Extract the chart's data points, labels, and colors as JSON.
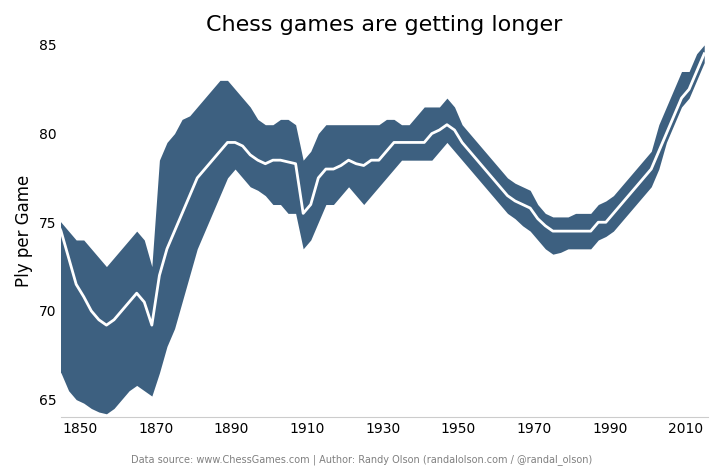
{
  "title": "Chess games are getting longer",
  "ylabel": "Ply per Game",
  "footer": "Data source: www.ChessGames.com | Author: Randy Olson (randalolson.com / @randal_olson)",
  "xlim": [
    1845,
    2016
  ],
  "ylim": [
    64,
    85
  ],
  "xticks": [
    1850,
    1870,
    1890,
    1910,
    1930,
    1950,
    1970,
    1990,
    2010
  ],
  "yticks": [
    65,
    70,
    75,
    80,
    85
  ],
  "band_color": "#3d6080",
  "line_color": "#ffffff",
  "background_color": "#ffffff",
  "years": [
    1843,
    1845,
    1847,
    1849,
    1851,
    1853,
    1855,
    1857,
    1859,
    1861,
    1863,
    1865,
    1867,
    1869,
    1871,
    1873,
    1875,
    1877,
    1879,
    1881,
    1883,
    1885,
    1887,
    1889,
    1891,
    1893,
    1895,
    1897,
    1899,
    1901,
    1903,
    1905,
    1907,
    1909,
    1911,
    1913,
    1915,
    1917,
    1919,
    1921,
    1923,
    1925,
    1927,
    1929,
    1931,
    1933,
    1935,
    1937,
    1939,
    1941,
    1943,
    1945,
    1947,
    1949,
    1951,
    1953,
    1955,
    1957,
    1959,
    1961,
    1963,
    1965,
    1967,
    1969,
    1971,
    1973,
    1975,
    1977,
    1979,
    1981,
    1983,
    1985,
    1987,
    1989,
    1991,
    1993,
    1995,
    1997,
    1999,
    2001,
    2003,
    2005,
    2007,
    2009,
    2011,
    2013,
    2015
  ],
  "median": [
    75.5,
    74.5,
    73.0,
    71.5,
    70.8,
    70.0,
    69.5,
    69.2,
    69.5,
    70.0,
    70.5,
    71.0,
    70.5,
    69.2,
    72.0,
    73.5,
    74.5,
    75.5,
    76.5,
    77.5,
    78.0,
    78.5,
    79.0,
    79.5,
    79.5,
    79.3,
    78.8,
    78.5,
    78.3,
    78.5,
    78.5,
    78.4,
    78.3,
    75.5,
    76.0,
    77.5,
    78.0,
    78.0,
    78.2,
    78.5,
    78.3,
    78.2,
    78.5,
    78.5,
    79.0,
    79.5,
    79.5,
    79.5,
    79.5,
    79.5,
    80.0,
    80.2,
    80.5,
    80.2,
    79.5,
    79.0,
    78.5,
    78.0,
    77.5,
    77.0,
    76.5,
    76.2,
    76.0,
    75.8,
    75.2,
    74.8,
    74.5,
    74.5,
    74.5,
    74.5,
    74.5,
    74.5,
    75.0,
    75.0,
    75.5,
    76.0,
    76.5,
    77.0,
    77.5,
    78.0,
    79.0,
    80.0,
    81.0,
    82.0,
    82.5,
    83.5,
    84.5
  ],
  "lower": [
    67.0,
    66.5,
    65.5,
    65.0,
    64.8,
    64.5,
    64.3,
    64.2,
    64.5,
    65.0,
    65.5,
    65.8,
    65.5,
    65.2,
    66.5,
    68.0,
    69.0,
    70.5,
    72.0,
    73.5,
    74.5,
    75.5,
    76.5,
    77.5,
    78.0,
    77.5,
    77.0,
    76.8,
    76.5,
    76.0,
    76.0,
    75.5,
    75.5,
    73.5,
    74.0,
    75.0,
    76.0,
    76.0,
    76.5,
    77.0,
    76.5,
    76.0,
    76.5,
    77.0,
    77.5,
    78.0,
    78.5,
    78.5,
    78.5,
    78.5,
    78.5,
    79.0,
    79.5,
    79.0,
    78.5,
    78.0,
    77.5,
    77.0,
    76.5,
    76.0,
    75.5,
    75.2,
    74.8,
    74.5,
    74.0,
    73.5,
    73.2,
    73.3,
    73.5,
    73.5,
    73.5,
    73.5,
    74.0,
    74.2,
    74.5,
    75.0,
    75.5,
    76.0,
    76.5,
    77.0,
    78.0,
    79.5,
    80.5,
    81.5,
    82.0,
    83.0,
    84.0
  ],
  "upper": [
    75.5,
    75.0,
    74.5,
    74.0,
    74.0,
    73.5,
    73.0,
    72.5,
    73.0,
    73.5,
    74.0,
    74.5,
    74.0,
    72.5,
    78.5,
    79.5,
    80.0,
    80.8,
    81.0,
    81.5,
    82.0,
    82.5,
    83.0,
    83.0,
    82.5,
    82.0,
    81.5,
    80.8,
    80.5,
    80.5,
    80.8,
    80.8,
    80.5,
    78.5,
    79.0,
    80.0,
    80.5,
    80.5,
    80.5,
    80.5,
    80.5,
    80.5,
    80.5,
    80.5,
    80.8,
    80.8,
    80.5,
    80.5,
    81.0,
    81.5,
    81.5,
    81.5,
    82.0,
    81.5,
    80.5,
    80.0,
    79.5,
    79.0,
    78.5,
    78.0,
    77.5,
    77.2,
    77.0,
    76.8,
    76.0,
    75.5,
    75.3,
    75.3,
    75.3,
    75.5,
    75.5,
    75.5,
    76.0,
    76.2,
    76.5,
    77.0,
    77.5,
    78.0,
    78.5,
    79.0,
    80.5,
    81.5,
    82.5,
    83.5,
    83.5,
    84.5,
    85.0
  ]
}
